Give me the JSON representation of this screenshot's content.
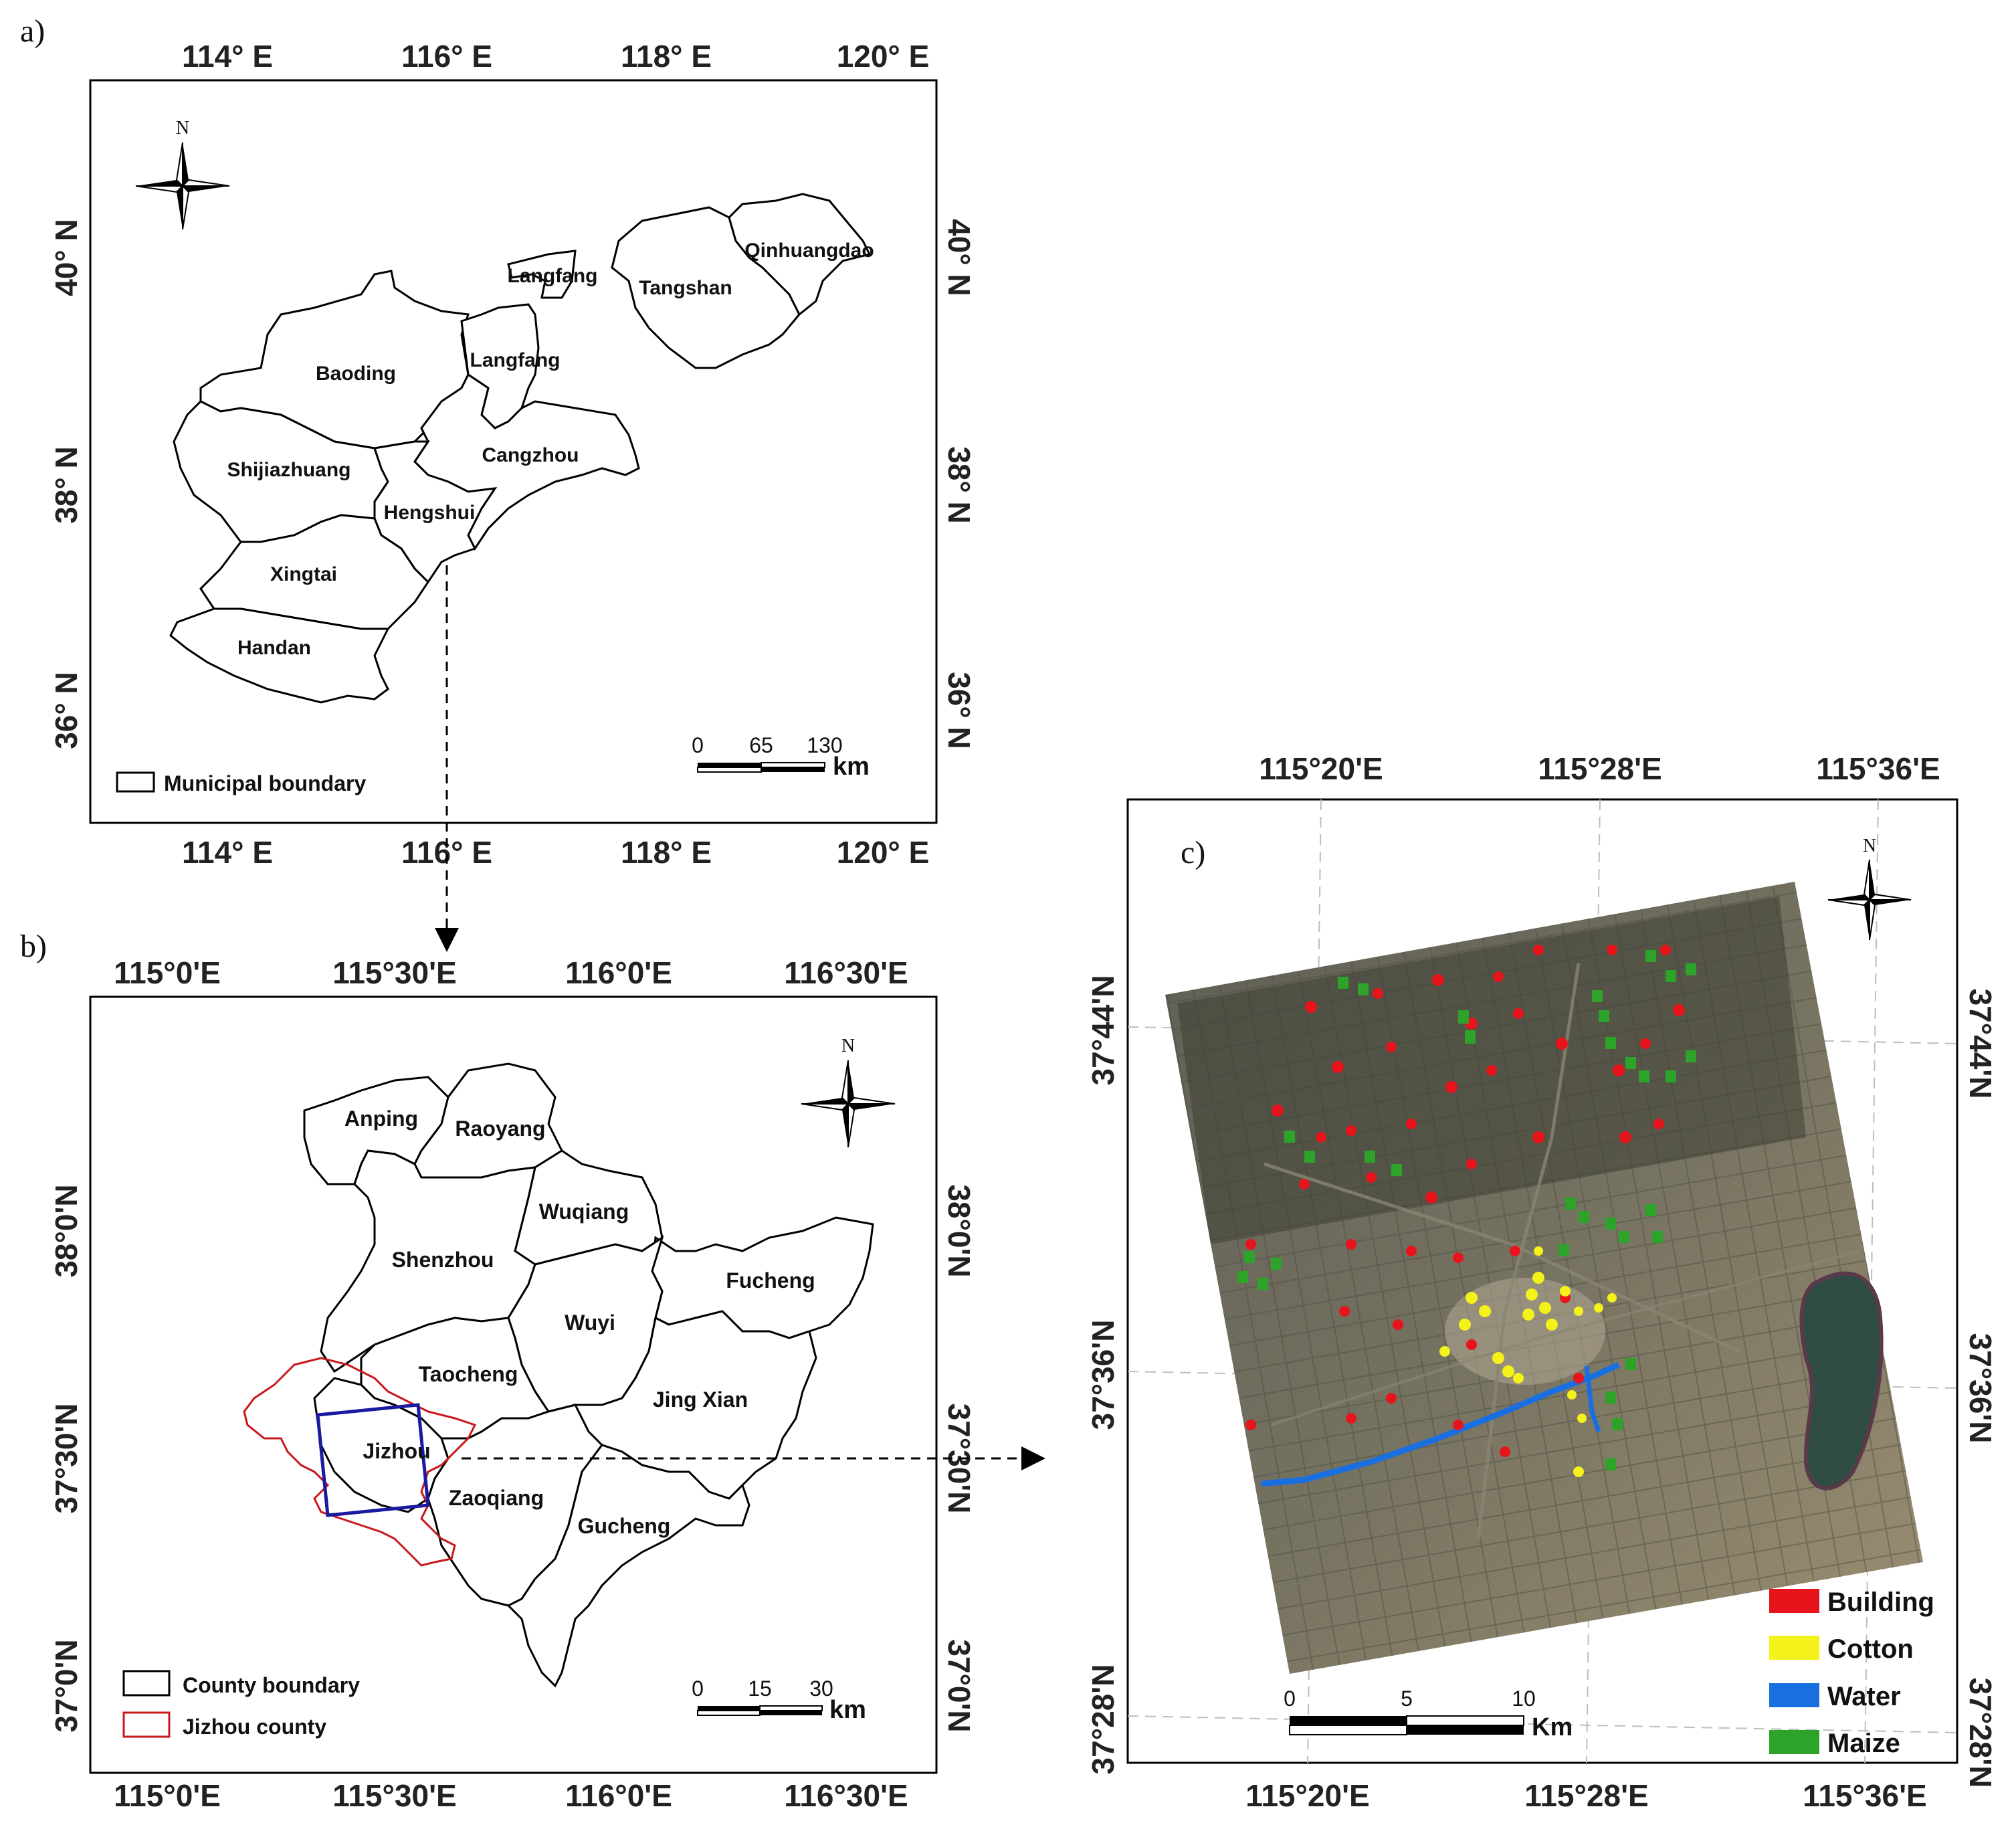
{
  "panel_a": {
    "label": "a)",
    "x_ticks": [
      "114° E",
      "116° E",
      "118° E",
      "120° E"
    ],
    "y_ticks": [
      "40° N",
      "38° N",
      "36° N"
    ],
    "north": "N",
    "regions": [
      "Langfang",
      "Tangshan",
      "Qinhuangdao",
      "Baoding",
      "Langfang",
      "Cangzhou",
      "Shijiazhuang",
      "Hengshui",
      "Xingtai",
      "Handan"
    ],
    "scale": {
      "ticks": [
        "0",
        "65",
        "130"
      ],
      "unit": "km"
    },
    "legend": "Municipal boundary"
  },
  "panel_b": {
    "label": "b)",
    "x_ticks": [
      "115°0'E",
      "115°30'E",
      "116°0'E",
      "116°30'E"
    ],
    "y_ticks": [
      "38°0'N",
      "37°30'N",
      "37°0'N"
    ],
    "north": "N",
    "regions": [
      "Anping",
      "Raoyang",
      "Wuqiang",
      "Shenzhou",
      "Fucheng",
      "Wuyi",
      "Taocheng",
      "Jing Xian",
      "Jizhou",
      "Zaoqiang",
      "Gucheng"
    ],
    "scale": {
      "ticks": [
        "0",
        "15",
        "30"
      ],
      "unit": "km"
    },
    "legend": [
      "County boundary",
      "Jizhou county"
    ]
  },
  "panel_c": {
    "label": "c)",
    "x_ticks": [
      "115°20'E",
      "115°28'E",
      "115°36'E"
    ],
    "y_ticks": [
      "37°44'N",
      "37°36'N",
      "37°28'N"
    ],
    "north": "N",
    "scale": {
      "ticks": [
        "0",
        "5",
        "10"
      ],
      "unit": "Km"
    },
    "legend": [
      {
        "label": "Building",
        "color": "#e8141c"
      },
      {
        "label": "Cotton",
        "color": "#f4f21a"
      },
      {
        "label": "Water",
        "color": "#1a6fe0"
      },
      {
        "label": "Maize",
        "color": "#2ea32a"
      }
    ]
  }
}
